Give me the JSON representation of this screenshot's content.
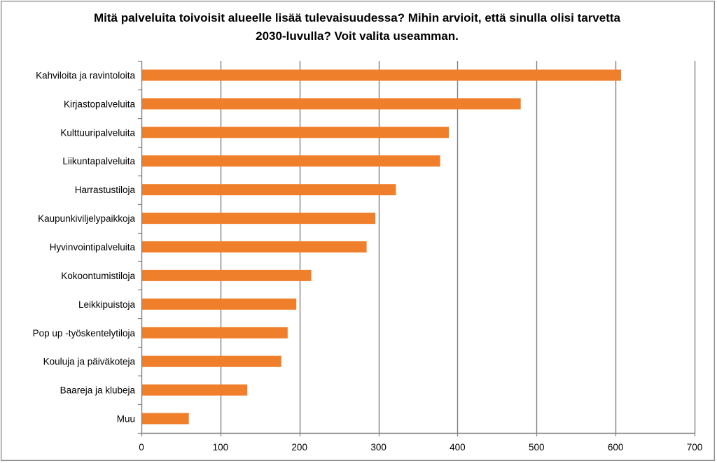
{
  "chart_data": {
    "type": "bar",
    "orientation": "horizontal",
    "title_lines": [
      "Mitä palveluita toivoisit alueelle lisää tulevaisuudessa? Mihin arvioit, että sinulla olisi tarvetta",
      "2030-luvulla? Voit valita useamman."
    ],
    "categories": [
      "Kahviloita ja ravintoloita",
      "Kirjastopalveluita",
      "Kulttuuripalveluita",
      "Liikuntapalveluita",
      "Harrastustiloja",
      "Kaupunkiviljelypaikkoja",
      "Hyvinvointipalveluita",
      "Kokoontumistiloja",
      "Leikkipuistoja",
      "Pop up -työskentelytiloja",
      "Kouluja ja päiväkoteja",
      "Baareja ja klubeja",
      "Muu"
    ],
    "values": [
      607,
      480,
      389,
      378,
      322,
      296,
      285,
      215,
      196,
      185,
      177,
      134,
      60
    ],
    "xlim": [
      0,
      700
    ],
    "xticks": [
      "0",
      "100",
      "200",
      "300",
      "400",
      "500",
      "600",
      "700"
    ],
    "xtick_values": [
      0,
      100,
      200,
      300,
      400,
      500,
      600,
      700
    ],
    "grid": "vertical",
    "legend": "none",
    "bar_color": "#f07f2b",
    "grid_color": "#808080"
  }
}
